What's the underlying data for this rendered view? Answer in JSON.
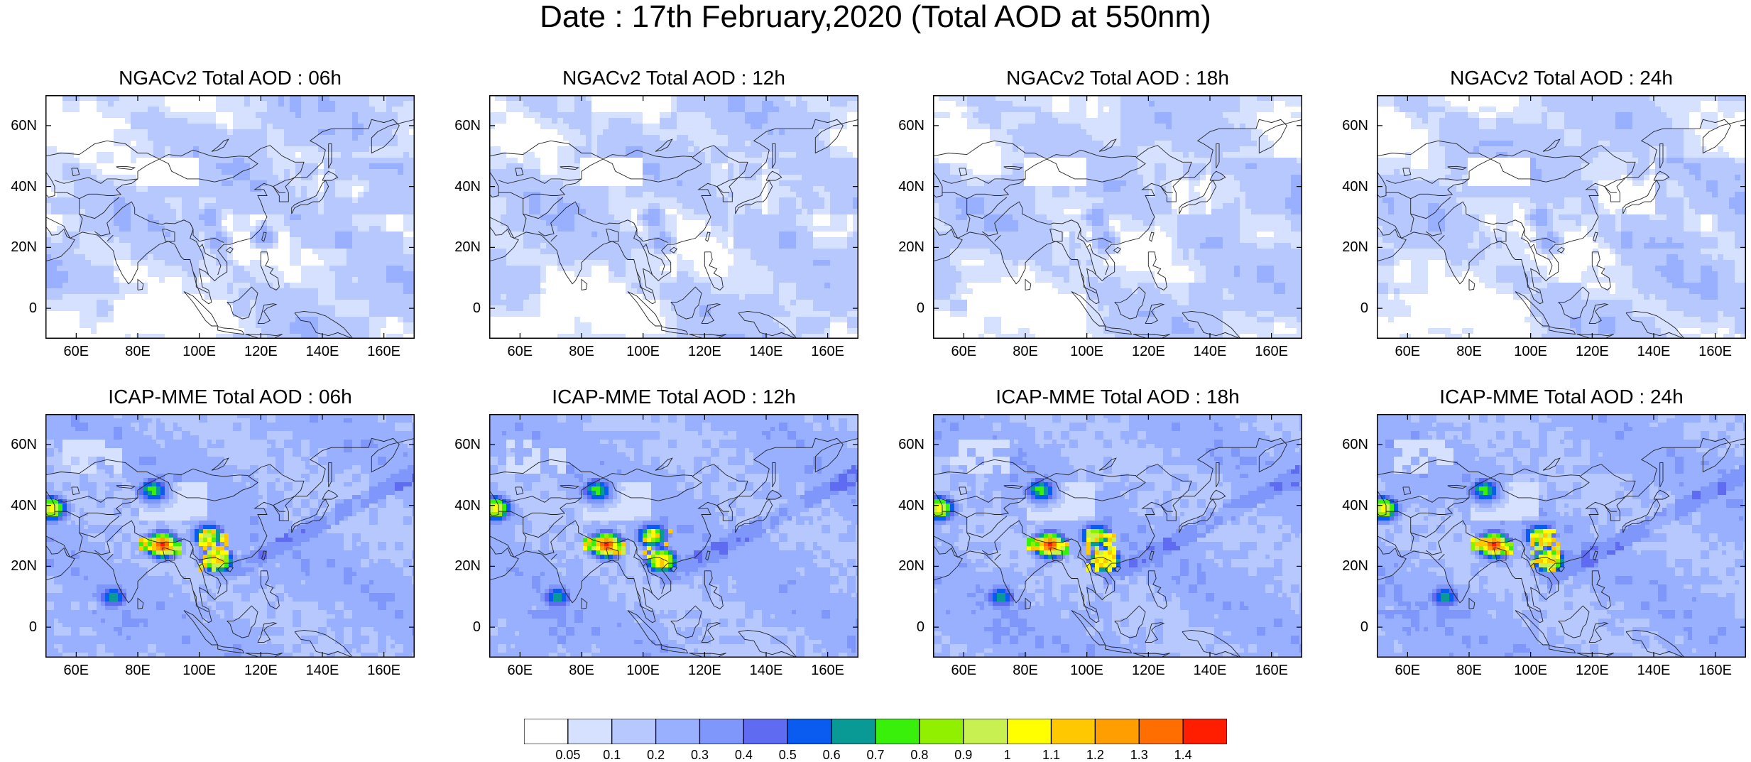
{
  "title": "Date : 17th February,2020 (Total AOD at 550nm)",
  "panels": [
    {
      "title": "NGACv2 Total AOD : 06h",
      "model": "NGACv2",
      "hour": "06h"
    },
    {
      "title": "NGACv2 Total AOD : 12h",
      "model": "NGACv2",
      "hour": "12h"
    },
    {
      "title": "NGACv2 Total AOD : 18h",
      "model": "NGACv2",
      "hour": "18h"
    },
    {
      "title": "NGACv2 Total AOD : 24h",
      "model": "NGACv2",
      "hour": "24h"
    },
    {
      "title": "ICAP-MME Total AOD : 06h",
      "model": "ICAP-MME",
      "hour": "06h"
    },
    {
      "title": "ICAP-MME Total AOD : 12h",
      "model": "ICAP-MME",
      "hour": "12h"
    },
    {
      "title": "ICAP-MME Total AOD : 18h",
      "model": "ICAP-MME",
      "hour": "18h"
    },
    {
      "title": "ICAP-MME Total AOD : 24h",
      "model": "ICAP-MME",
      "hour": "24h"
    }
  ],
  "axes": {
    "lat_labels": [
      "60N",
      "40N",
      "20N",
      "0"
    ],
    "lat_values": [
      60,
      40,
      20,
      0
    ],
    "lat_range": [
      -10,
      70
    ],
    "lon_labels": [
      "60E",
      "80E",
      "100E",
      "120E",
      "140E",
      "160E"
    ],
    "lon_values": [
      60,
      80,
      100,
      120,
      140,
      160
    ],
    "lon_range": [
      50,
      170
    ]
  },
  "colorbar": {
    "ticks": [
      "0.05",
      "0.1",
      "0.2",
      "0.3",
      "0.4",
      "0.5",
      "0.6",
      "0.7",
      "0.8",
      "0.9",
      "1",
      "1.1",
      "1.2",
      "1.3",
      "1.4"
    ],
    "colors": [
      "#ffffff",
      "#d6e0ff",
      "#b7c8ff",
      "#98b0ff",
      "#7f96fa",
      "#5f6bf0",
      "#0a5cf0",
      "#0a9a96",
      "#39f00a",
      "#90f000",
      "#c8f050",
      "#ffff00",
      "#ffc800",
      "#ff9e00",
      "#ff6e00",
      "#ff1e00"
    ]
  },
  "chart_data": {
    "type": "heatmap",
    "variable": "Total AOD at 550nm",
    "date": "17th February,2020",
    "grid": {
      "lon_range": [
        50,
        170
      ],
      "lat_range": [
        -10,
        70
      ]
    },
    "background_level": {
      "NGACv2": 0.1,
      "ICAP-MME": 0.2
    },
    "features": {
      "NGACv2": [
        {
          "lon": 103,
          "lat": 30,
          "value": 0.3,
          "hour": [
            "06h",
            "12h",
            "18h",
            "24h"
          ]
        },
        {
          "lon": 106,
          "lat": 22,
          "value": 0.3,
          "hour": [
            "06h",
            "12h",
            "18h",
            "24h"
          ]
        },
        {
          "lon": 121,
          "lat": 24,
          "value": 0.3,
          "hour": [
            "06h"
          ]
        },
        {
          "lon": 135,
          "lat": 45,
          "value": 0.2,
          "hour": [
            "06h",
            "12h",
            "18h",
            "24h"
          ]
        },
        {
          "lon": 155,
          "lat": 35,
          "value": 0.2,
          "hour": [
            "06h",
            "12h",
            "18h",
            "24h"
          ]
        }
      ],
      "ICAP-MME": [
        {
          "lon": 52,
          "lat": 39,
          "value": 0.9,
          "hour": [
            "06h",
            "12h",
            "18h",
            "24h"
          ]
        },
        {
          "lon": 88,
          "lat": 27,
          "value": 1.3,
          "hour": [
            "06h",
            "12h",
            "18h",
            "24h"
          ]
        },
        {
          "lon": 106,
          "lat": 22,
          "value": 1.0,
          "hour": [
            "06h",
            "12h",
            "18h",
            "24h"
          ]
        },
        {
          "lon": 103,
          "lat": 30,
          "value": 0.8,
          "hour": [
            "06h",
            "12h",
            "18h",
            "24h"
          ]
        },
        {
          "lon": 72,
          "lat": 10,
          "value": 0.5,
          "hour": [
            "06h",
            "12h",
            "18h",
            "24h"
          ]
        },
        {
          "lon": 85,
          "lat": 45,
          "value": 0.6,
          "hour": [
            "06h",
            "12h",
            "18h",
            "24h"
          ]
        }
      ]
    },
    "low_regions": [
      {
        "name_hint": "",
        "lon": 88,
        "lat": 42,
        "value": 0.05
      },
      {
        "name_hint": "",
        "lon": 62,
        "lat": 55,
        "value": 0.05
      }
    ]
  }
}
